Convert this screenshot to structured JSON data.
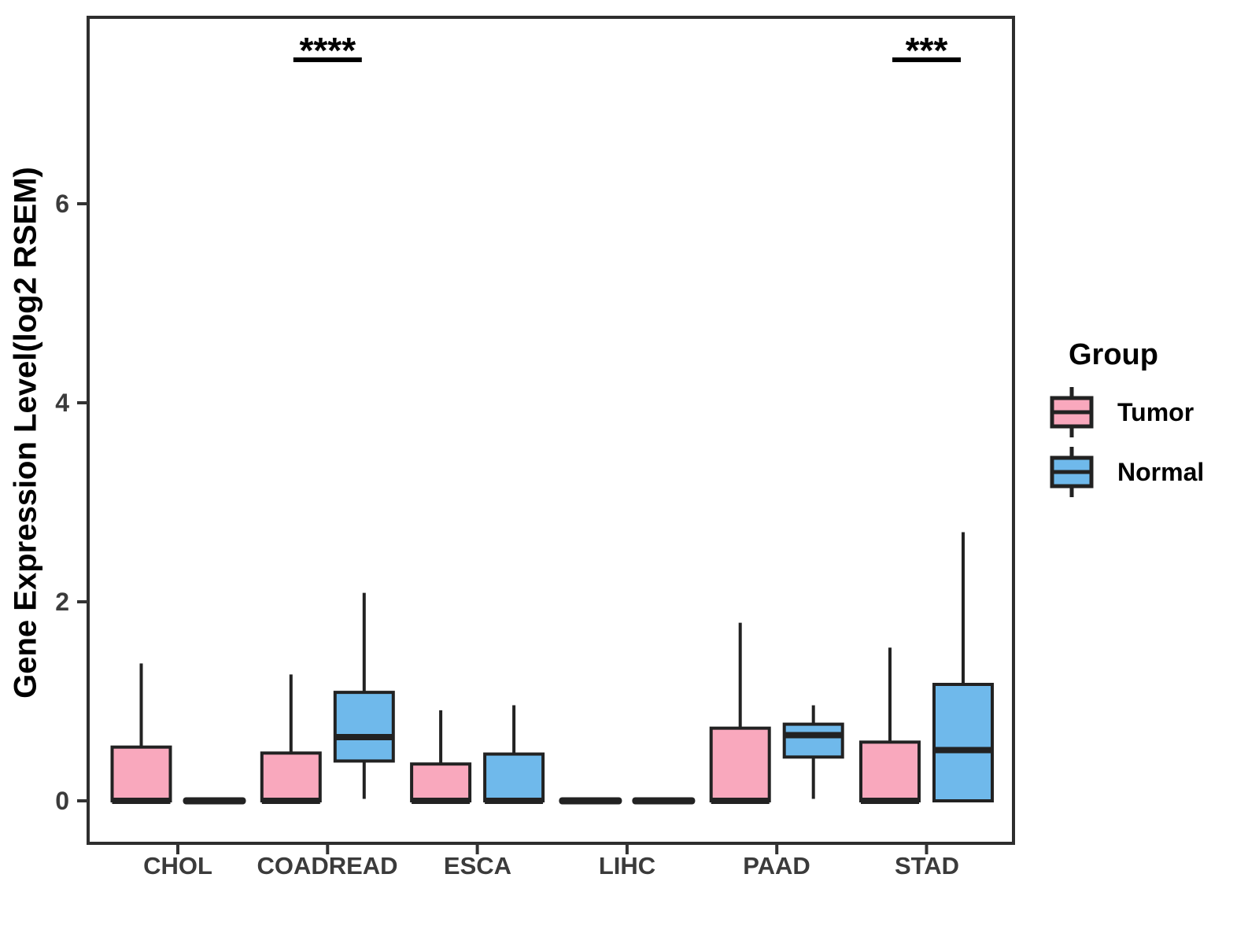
{
  "figure": {
    "background": "#FFFFFF"
  },
  "chart_data": {
    "type": "boxplot",
    "title": "",
    "xlabel": "",
    "ylabel": "Gene Expression Level(log2 RSEM)",
    "yticks": [
      0,
      2,
      4,
      6
    ],
    "ylim": [
      -0.45,
      7.85
    ],
    "grid": false,
    "panel_border": true,
    "legend": {
      "title": "Group",
      "position": "right",
      "entries": [
        "Tumor",
        "Normal"
      ]
    },
    "categories": [
      "CHOL",
      "COADREAD",
      "ESCA",
      "LIHC",
      "PAAD",
      "STAD"
    ],
    "series": [
      {
        "name": "Tumor",
        "color": "#F9A8BD",
        "boxes": [
          {
            "min": 0,
            "q1": 0,
            "median": 0,
            "q3": 0.54,
            "max": 1.38
          },
          {
            "min": 0,
            "q1": 0,
            "median": 0,
            "q3": 0.48,
            "max": 1.27
          },
          {
            "min": 0,
            "q1": 0,
            "median": 0,
            "q3": 0.37,
            "max": 0.91
          },
          {
            "min": 0,
            "q1": 0,
            "median": 0,
            "q3": 0,
            "max": 0
          },
          {
            "min": 0,
            "q1": 0,
            "median": 0,
            "q3": 0.73,
            "max": 1.79
          },
          {
            "min": 0,
            "q1": 0,
            "median": 0,
            "q3": 0.59,
            "max": 1.54
          }
        ]
      },
      {
        "name": "Normal",
        "color": "#6FB9EB",
        "boxes": [
          {
            "min": 0,
            "q1": 0,
            "median": 0,
            "q3": 0,
            "max": 0
          },
          {
            "min": 0.02,
            "q1": 0.4,
            "median": 0.64,
            "q3": 1.09,
            "max": 2.09
          },
          {
            "min": 0,
            "q1": 0,
            "median": 0,
            "q3": 0.47,
            "max": 0.96
          },
          {
            "min": 0,
            "q1": 0,
            "median": 0,
            "q3": 0,
            "max": 0
          },
          {
            "min": 0.02,
            "q1": 0.44,
            "median": 0.66,
            "q3": 0.77,
            "max": 0.96
          },
          {
            "min": 0,
            "q1": 0,
            "median": 0.51,
            "q3": 1.17,
            "max": 2.7
          }
        ]
      }
    ],
    "annotations": [
      {
        "category": "COADREAD",
        "label": "****"
      },
      {
        "category": "STAD",
        "label": "***"
      }
    ],
    "colors": {
      "box_outline": "#222222",
      "axis": "#333333",
      "tick_label": "#3B3B3B",
      "annotation": "#000000"
    }
  }
}
